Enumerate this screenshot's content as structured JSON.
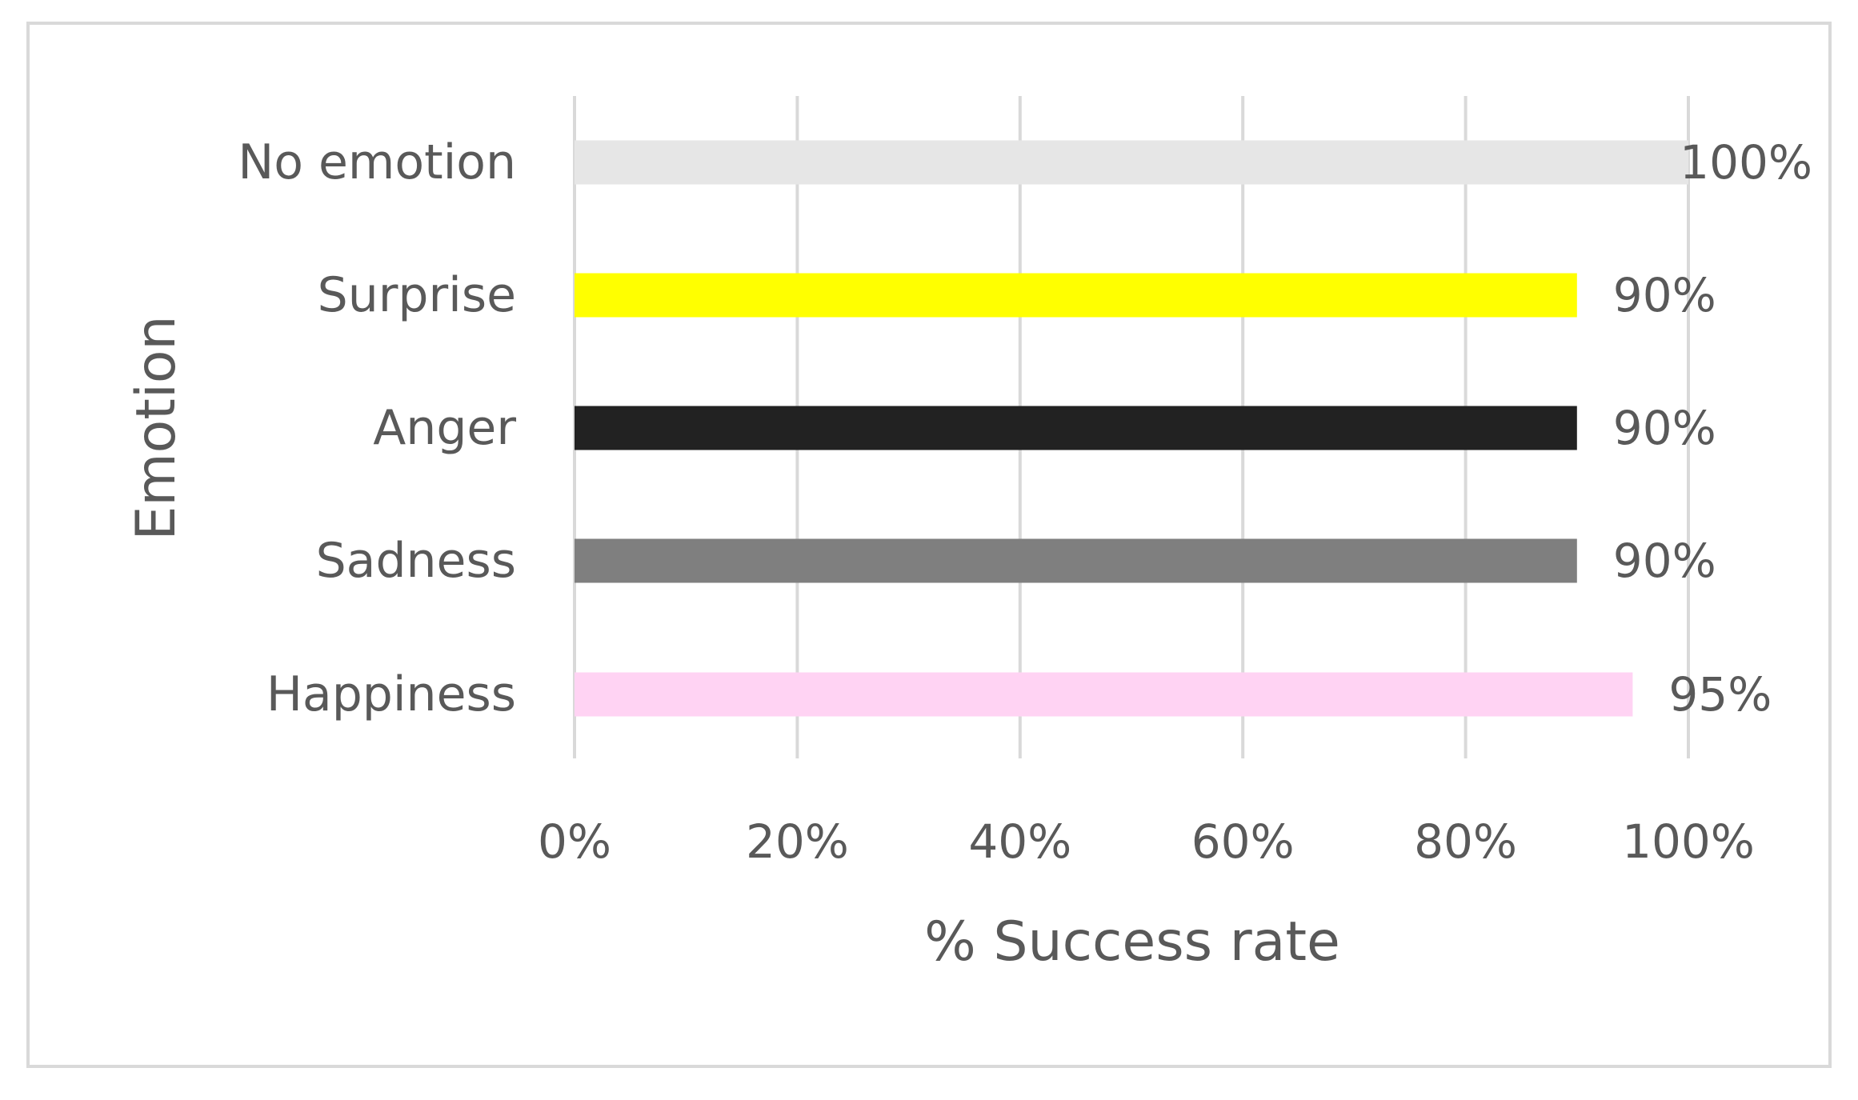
{
  "chart_data": {
    "type": "bar",
    "orientation": "horizontal",
    "categories": [
      "No emotion",
      "Surprise",
      "Anger",
      "Sadness",
      "Happiness"
    ],
    "values": [
      100,
      90,
      90,
      90,
      95
    ],
    "value_labels": [
      "100%",
      "90%",
      "90%",
      "90%",
      "95%"
    ],
    "bar_colors": [
      "#e6e6e6",
      "#ffff00",
      "#222222",
      "#7f7f7f",
      "#ffd3f3"
    ],
    "xlabel": "% Success rate",
    "ylabel": "Emotion",
    "xlim": [
      0,
      100
    ],
    "x_ticks": [
      0,
      20,
      40,
      60,
      80,
      100
    ],
    "x_tick_labels": [
      "0%",
      "20%",
      "40%",
      "60%",
      "80%",
      "100%"
    ],
    "grid": "vertical",
    "legend": "none"
  },
  "colors": {
    "gridline": "#d9d9d9",
    "text": "#595959",
    "frame": "#d9d9d9"
  }
}
